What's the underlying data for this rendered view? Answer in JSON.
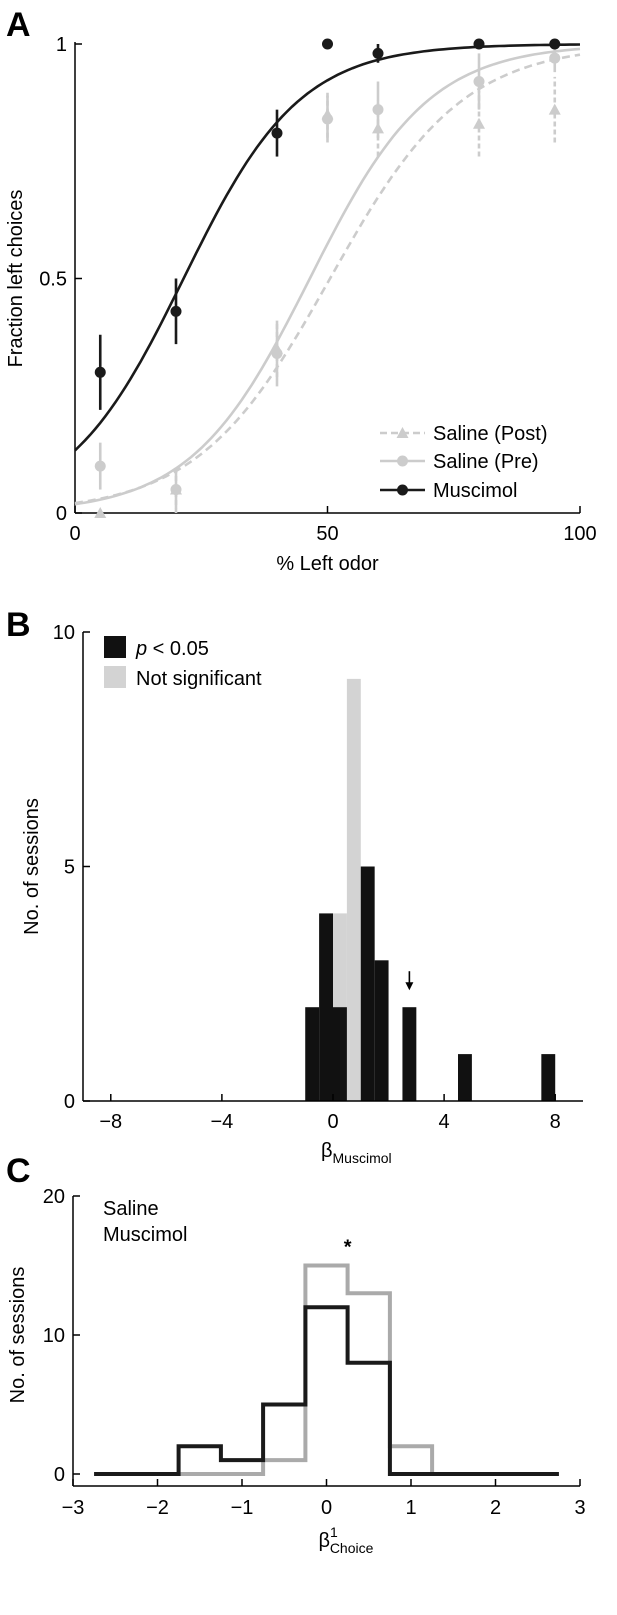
{
  "panels": {
    "a": {
      "letter": "A"
    },
    "b": {
      "letter": "B"
    },
    "c": {
      "letter": "C"
    }
  },
  "chart_data": [
    {
      "panel": "A",
      "type": "line",
      "xlabel": "% Left odor",
      "ylabel": "Fraction left choices",
      "xlim": [
        0,
        100
      ],
      "ylim": [
        0,
        1
      ],
      "xticks": [
        "0",
        "50",
        "100"
      ],
      "yticks": [
        "0",
        "0.5",
        "1"
      ],
      "legend_position": "bottom-right",
      "colors": {
        "muscimol": "#1a1a1a",
        "saline_pre": "#cccccc",
        "saline_post": "#cccccc"
      },
      "series": [
        {
          "name": "Saline (Post)",
          "style": "dashed",
          "marker": "triangle",
          "x": [
            5,
            20,
            40,
            50,
            60,
            80,
            95
          ],
          "y": [
            0.0,
            0.05,
            0.35,
            0.85,
            0.82,
            0.83,
            0.86
          ],
          "err": [
            0.0,
            0.05,
            0.06,
            0.05,
            0.06,
            0.07,
            0.07
          ],
          "fit": {
            "x0": 50.5,
            "k": 0.076
          }
        },
        {
          "name": "Saline (Pre)",
          "style": "solid",
          "marker": "circle",
          "x": [
            5,
            20,
            40,
            50,
            60,
            80,
            95
          ],
          "y": [
            0.1,
            0.05,
            0.34,
            0.84,
            0.86,
            0.92,
            0.97
          ],
          "err": [
            0.05,
            0.04,
            0.07,
            0.05,
            0.06,
            0.06,
            0.03
          ],
          "fit": {
            "x0": 46.5,
            "k": 0.085
          }
        },
        {
          "name": "Muscimol",
          "style": "solid",
          "marker": "circle",
          "x": [
            5,
            20,
            40,
            50,
            60,
            80,
            95
          ],
          "y": [
            0.3,
            0.43,
            0.81,
            1.0,
            0.98,
            1.0,
            1.0
          ],
          "err": [
            0.08,
            0.07,
            0.05,
            0.0,
            0.02,
            0.0,
            0.0
          ],
          "fit": {
            "x0": 21.5,
            "k": 0.087
          }
        }
      ]
    },
    {
      "panel": "B",
      "type": "bar",
      "xlabel": "β",
      "xlabel_sub": "Muscimol",
      "ylabel": "No. of sessions",
      "xlim": [
        -9,
        9
      ],
      "ylim": [
        0,
        10
      ],
      "xticks": [
        {
          "v": -8,
          "label": "−8"
        },
        {
          "v": -4,
          "label": "−4"
        },
        {
          "v": 0,
          "label": "0"
        },
        {
          "v": 4,
          "label": "4"
        },
        {
          "v": 8,
          "label": "8"
        }
      ],
      "yticks": [
        {
          "v": 0,
          "label": "0"
        },
        {
          "v": 5,
          "label": "5"
        },
        {
          "v": 10,
          "label": "10"
        }
      ],
      "bin_width": 0.5,
      "legend_position": "top-left",
      "arrow_at": 2.75,
      "colors": {
        "significant": "#111111",
        "not_significant": "#d3d3d3"
      },
      "series": [
        {
          "name": "p < 0.05",
          "name_italic": "p",
          "name_rest": " < 0.05",
          "bins": [
            -1.0,
            -0.5,
            0.0,
            0.5,
            1.0,
            1.5,
            2.5,
            4.5,
            7.5
          ],
          "values": [
            2,
            4,
            2,
            0,
            5,
            3,
            2,
            1,
            1
          ]
        },
        {
          "name": "Not significant",
          "bins": [
            0.0,
            0.5
          ],
          "values": [
            4,
            9
          ]
        }
      ]
    },
    {
      "panel": "C",
      "type": "line",
      "subtype": "step-histogram",
      "xlabel": "β",
      "xlabel_sup": "1",
      "xlabel_sub": "Choice",
      "ylabel": "No. of sessions",
      "xlim": [
        -3,
        3
      ],
      "ylim": [
        0,
        20
      ],
      "xticks": [
        {
          "v": -3,
          "label": "−3"
        },
        {
          "v": -2,
          "label": "−2"
        },
        {
          "v": -1,
          "label": "−1"
        },
        {
          "v": 0,
          "label": "0"
        },
        {
          "v": 1,
          "label": "1"
        },
        {
          "v": 2,
          "label": "2"
        },
        {
          "v": 3,
          "label": "3"
        }
      ],
      "yticks": [
        {
          "v": 0,
          "label": "0"
        },
        {
          "v": 10,
          "label": "10"
        },
        {
          "v": 20,
          "label": "20"
        }
      ],
      "legend_position": "top-left",
      "annotation": "*",
      "annotation_x": 0.25,
      "colors": {
        "saline": "#aaaaaa",
        "muscimol": "#1a1a1a"
      },
      "series": [
        {
          "name": "Saline",
          "edges": [
            -2.75,
            -0.75,
            -0.25,
            0.25,
            0.75,
            1.25,
            2.75
          ],
          "values": [
            0,
            1,
            15,
            13,
            2,
            0
          ]
        },
        {
          "name": "Muscimol",
          "edges": [
            -2.75,
            -1.75,
            -1.25,
            -0.75,
            -0.25,
            0.25,
            0.75,
            2.75
          ],
          "values": [
            0,
            2,
            1,
            5,
            12,
            8,
            0
          ]
        }
      ]
    }
  ]
}
